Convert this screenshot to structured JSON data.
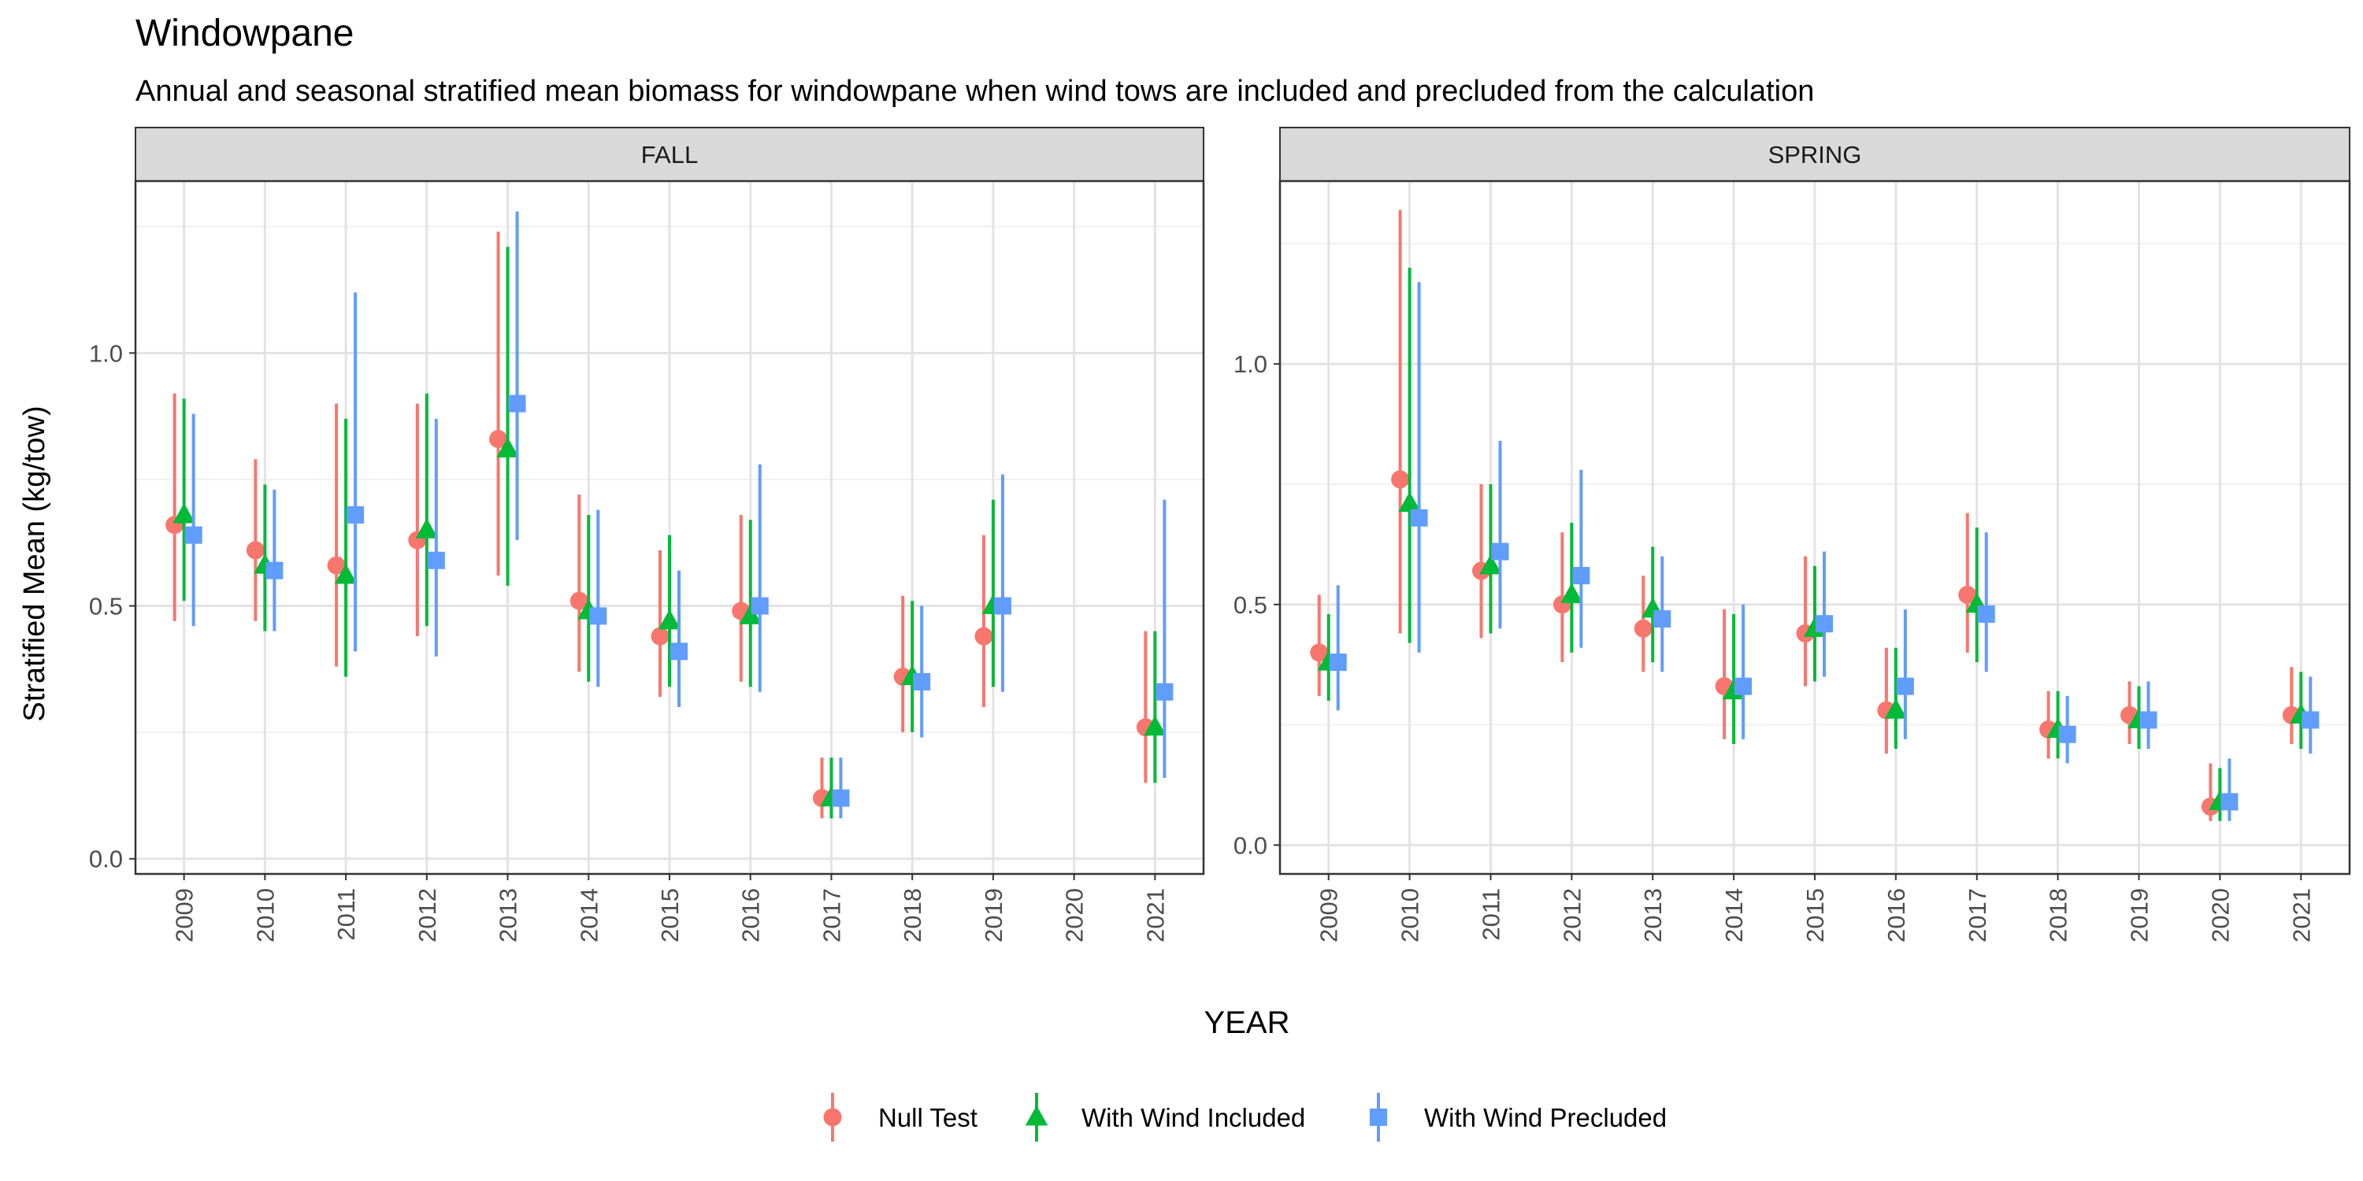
{
  "title": "Windowpane",
  "subtitle": "Annual and seasonal stratified mean biomass for windowpane when wind tows are included and precluded from the calculation",
  "xlabel": "YEAR",
  "ylabel": "Stratified Mean (kg/tow)",
  "legend_entries": [
    "Null Test",
    "With Wind Included",
    "With Wind Precluded"
  ],
  "chart_data": {
    "type": "scatter",
    "title": "Windowpane",
    "subtitle": "Annual and seasonal stratified mean biomass for windowpane when wind tows are included and precluded from the calculation",
    "xlabel": "YEAR",
    "ylabel": "Stratified Mean (kg/tow)",
    "legend_position": "bottom",
    "grid": true,
    "series_style": [
      {
        "name": "Null Test",
        "color": "#F8766D",
        "shape": "circle"
      },
      {
        "name": "With Wind Included",
        "color": "#00BA38",
        "shape": "triangle"
      },
      {
        "name": "With Wind Precluded",
        "color": "#619CFF",
        "shape": "square"
      }
    ],
    "panels": [
      {
        "label": "FALL",
        "years": [
          "2009",
          "2010",
          "2011",
          "2012",
          "2013",
          "2014",
          "2015",
          "2016",
          "2017",
          "2018",
          "2019",
          "2020",
          "2021"
        ],
        "ylim": [
          -0.03,
          1.34
        ],
        "yticks": [
          "0.0",
          "0.5",
          "1.0"
        ],
        "series": [
          {
            "name": "Null Test",
            "points": [
              {
                "x": "2009",
                "y": 0.66,
                "lo": 0.47,
                "hi": 0.92
              },
              {
                "x": "2010",
                "y": 0.61,
                "lo": 0.47,
                "hi": 0.79
              },
              {
                "x": "2011",
                "y": 0.58,
                "lo": 0.38,
                "hi": 0.9
              },
              {
                "x": "2012",
                "y": 0.63,
                "lo": 0.44,
                "hi": 0.9
              },
              {
                "x": "2013",
                "y": 0.83,
                "lo": 0.56,
                "hi": 1.24
              },
              {
                "x": "2014",
                "y": 0.51,
                "lo": 0.37,
                "hi": 0.72
              },
              {
                "x": "2015",
                "y": 0.44,
                "lo": 0.32,
                "hi": 0.61
              },
              {
                "x": "2016",
                "y": 0.49,
                "lo": 0.35,
                "hi": 0.68
              },
              {
                "x": "2017",
                "y": 0.12,
                "lo": 0.08,
                "hi": 0.2
              },
              {
                "x": "2018",
                "y": 0.36,
                "lo": 0.25,
                "hi": 0.52
              },
              {
                "x": "2019",
                "y": 0.44,
                "lo": 0.3,
                "hi": 0.64
              },
              {
                "x": "2021",
                "y": 0.26,
                "lo": 0.15,
                "hi": 0.45
              }
            ]
          },
          {
            "name": "With Wind Included",
            "points": [
              {
                "x": "2009",
                "y": 0.68,
                "lo": 0.51,
                "hi": 0.91
              },
              {
                "x": "2010",
                "y": 0.58,
                "lo": 0.45,
                "hi": 0.74
              },
              {
                "x": "2011",
                "y": 0.56,
                "lo": 0.36,
                "hi": 0.87
              },
              {
                "x": "2012",
                "y": 0.65,
                "lo": 0.46,
                "hi": 0.92
              },
              {
                "x": "2013",
                "y": 0.81,
                "lo": 0.54,
                "hi": 1.21
              },
              {
                "x": "2014",
                "y": 0.49,
                "lo": 0.35,
                "hi": 0.68
              },
              {
                "x": "2015",
                "y": 0.47,
                "lo": 0.34,
                "hi": 0.64
              },
              {
                "x": "2016",
                "y": 0.48,
                "lo": 0.34,
                "hi": 0.67
              },
              {
                "x": "2017",
                "y": 0.12,
                "lo": 0.08,
                "hi": 0.2
              },
              {
                "x": "2018",
                "y": 0.36,
                "lo": 0.25,
                "hi": 0.51
              },
              {
                "x": "2019",
                "y": 0.5,
                "lo": 0.34,
                "hi": 0.71
              },
              {
                "x": "2021",
                "y": 0.26,
                "lo": 0.15,
                "hi": 0.45
              }
            ]
          },
          {
            "name": "With Wind Precluded",
            "points": [
              {
                "x": "2009",
                "y": 0.64,
                "lo": 0.46,
                "hi": 0.88
              },
              {
                "x": "2010",
                "y": 0.57,
                "lo": 0.45,
                "hi": 0.73
              },
              {
                "x": "2011",
                "y": 0.68,
                "lo": 0.41,
                "hi": 1.12
              },
              {
                "x": "2012",
                "y": 0.59,
                "lo": 0.4,
                "hi": 0.87
              },
              {
                "x": "2013",
                "y": 0.9,
                "lo": 0.63,
                "hi": 1.28
              },
              {
                "x": "2014",
                "y": 0.48,
                "lo": 0.34,
                "hi": 0.69
              },
              {
                "x": "2015",
                "y": 0.41,
                "lo": 0.3,
                "hi": 0.57
              },
              {
                "x": "2016",
                "y": 0.5,
                "lo": 0.33,
                "hi": 0.78
              },
              {
                "x": "2017",
                "y": 0.12,
                "lo": 0.08,
                "hi": 0.2
              },
              {
                "x": "2018",
                "y": 0.35,
                "lo": 0.24,
                "hi": 0.5
              },
              {
                "x": "2019",
                "y": 0.5,
                "lo": 0.33,
                "hi": 0.76
              },
              {
                "x": "2021",
                "y": 0.33,
                "lo": 0.16,
                "hi": 0.71
              }
            ]
          }
        ]
      },
      {
        "label": "SPRING",
        "years": [
          "2009",
          "2010",
          "2011",
          "2012",
          "2013",
          "2014",
          "2015",
          "2016",
          "2017",
          "2018",
          "2019",
          "2020",
          "2021"
        ],
        "ylim": [
          -0.06,
          1.38
        ],
        "yticks": [
          "0.0",
          "0.5",
          "1.0"
        ],
        "series": [
          {
            "name": "Null Test",
            "points": [
              {
                "x": "2009",
                "y": 0.4,
                "lo": 0.31,
                "hi": 0.52
              },
              {
                "x": "2010",
                "y": 0.76,
                "lo": 0.44,
                "hi": 1.32
              },
              {
                "x": "2011",
                "y": 0.57,
                "lo": 0.43,
                "hi": 0.75
              },
              {
                "x": "2012",
                "y": 0.5,
                "lo": 0.38,
                "hi": 0.65
              },
              {
                "x": "2013",
                "y": 0.45,
                "lo": 0.36,
                "hi": 0.56
              },
              {
                "x": "2014",
                "y": 0.33,
                "lo": 0.22,
                "hi": 0.49
              },
              {
                "x": "2015",
                "y": 0.44,
                "lo": 0.33,
                "hi": 0.6
              },
              {
                "x": "2016",
                "y": 0.28,
                "lo": 0.19,
                "hi": 0.41
              },
              {
                "x": "2017",
                "y": 0.52,
                "lo": 0.4,
                "hi": 0.69
              },
              {
                "x": "2018",
                "y": 0.24,
                "lo": 0.18,
                "hi": 0.32
              },
              {
                "x": "2019",
                "y": 0.27,
                "lo": 0.21,
                "hi": 0.34
              },
              {
                "x": "2020",
                "y": 0.08,
                "lo": 0.05,
                "hi": 0.17
              },
              {
                "x": "2021",
                "y": 0.27,
                "lo": 0.21,
                "hi": 0.37
              }
            ]
          },
          {
            "name": "With Wind Included",
            "points": [
              {
                "x": "2009",
                "y": 0.38,
                "lo": 0.3,
                "hi": 0.48
              },
              {
                "x": "2010",
                "y": 0.71,
                "lo": 0.42,
                "hi": 1.2
              },
              {
                "x": "2011",
                "y": 0.58,
                "lo": 0.44,
                "hi": 0.75
              },
              {
                "x": "2012",
                "y": 0.52,
                "lo": 0.4,
                "hi": 0.67
              },
              {
                "x": "2013",
                "y": 0.49,
                "lo": 0.38,
                "hi": 0.62
              },
              {
                "x": "2014",
                "y": 0.32,
                "lo": 0.21,
                "hi": 0.48
              },
              {
                "x": "2015",
                "y": 0.45,
                "lo": 0.34,
                "hi": 0.58
              },
              {
                "x": "2016",
                "y": 0.28,
                "lo": 0.2,
                "hi": 0.41
              },
              {
                "x": "2017",
                "y": 0.5,
                "lo": 0.38,
                "hi": 0.66
              },
              {
                "x": "2018",
                "y": 0.24,
                "lo": 0.18,
                "hi": 0.32
              },
              {
                "x": "2019",
                "y": 0.26,
                "lo": 0.2,
                "hi": 0.33
              },
              {
                "x": "2020",
                "y": 0.09,
                "lo": 0.05,
                "hi": 0.16
              },
              {
                "x": "2021",
                "y": 0.27,
                "lo": 0.2,
                "hi": 0.36
              }
            ]
          },
          {
            "name": "With Wind Precluded",
            "points": [
              {
                "x": "2009",
                "y": 0.38,
                "lo": 0.28,
                "hi": 0.54
              },
              {
                "x": "2010",
                "y": 0.68,
                "lo": 0.4,
                "hi": 1.17
              },
              {
                "x": "2011",
                "y": 0.61,
                "lo": 0.45,
                "hi": 0.84
              },
              {
                "x": "2012",
                "y": 0.56,
                "lo": 0.41,
                "hi": 0.78
              },
              {
                "x": "2013",
                "y": 0.47,
                "lo": 0.36,
                "hi": 0.6
              },
              {
                "x": "2014",
                "y": 0.33,
                "lo": 0.22,
                "hi": 0.5
              },
              {
                "x": "2015",
                "y": 0.46,
                "lo": 0.35,
                "hi": 0.61
              },
              {
                "x": "2016",
                "y": 0.33,
                "lo": 0.22,
                "hi": 0.49
              },
              {
                "x": "2017",
                "y": 0.48,
                "lo": 0.36,
                "hi": 0.65
              },
              {
                "x": "2018",
                "y": 0.23,
                "lo": 0.17,
                "hi": 0.31
              },
              {
                "x": "2019",
                "y": 0.26,
                "lo": 0.2,
                "hi": 0.34
              },
              {
                "x": "2020",
                "y": 0.09,
                "lo": 0.05,
                "hi": 0.18
              },
              {
                "x": "2021",
                "y": 0.26,
                "lo": 0.19,
                "hi": 0.35
              }
            ]
          }
        ]
      }
    ]
  }
}
